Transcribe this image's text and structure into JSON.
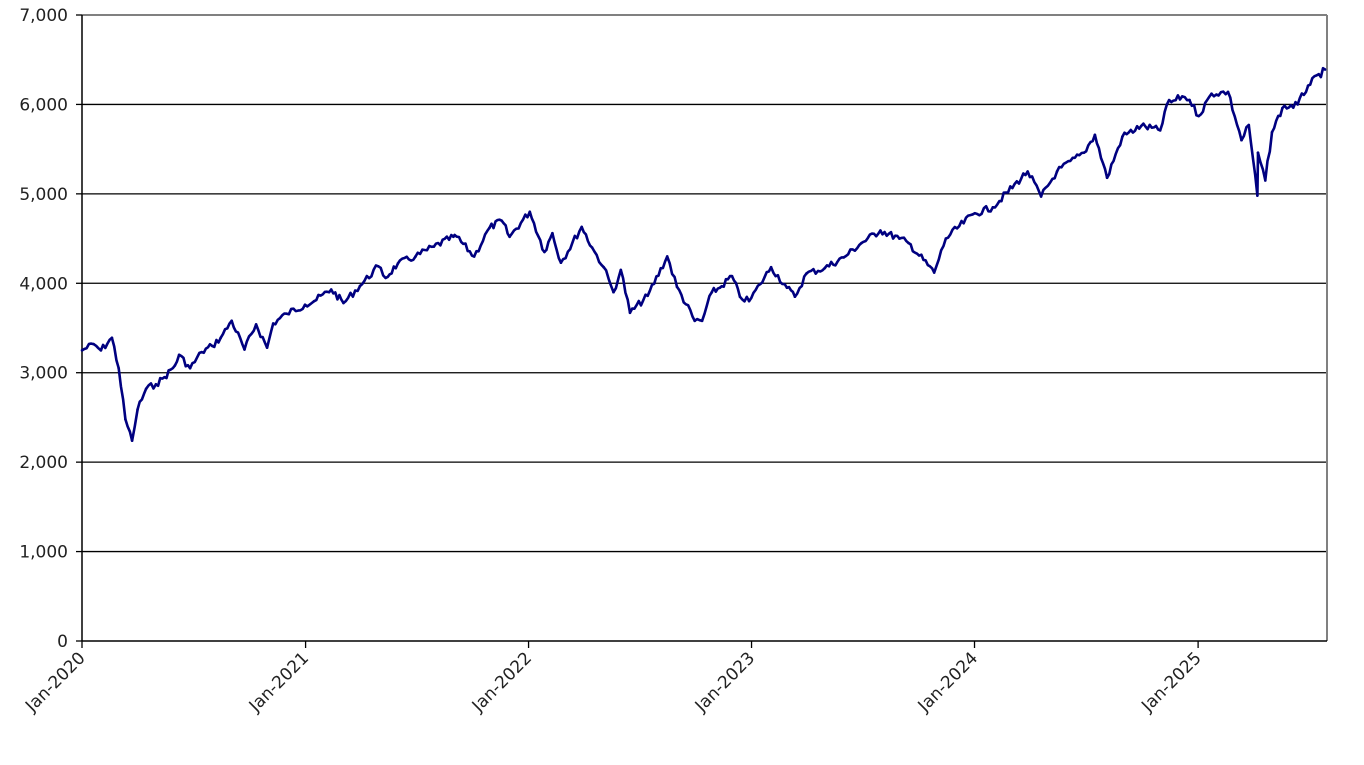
{
  "chart_data": {
    "type": "line",
    "title": "",
    "xlabel": "",
    "ylabel": "",
    "ylim": [
      0,
      7000
    ],
    "y_ticks": [
      0,
      1000,
      2000,
      3000,
      4000,
      5000,
      6000,
      7000
    ],
    "y_tick_labels": [
      "0",
      "1,000",
      "2,000",
      "3,000",
      "4,000",
      "5,000",
      "6,000",
      "7,000"
    ],
    "xlim": [
      "2020-01-01",
      "2025-07-31"
    ],
    "x_ticks": [
      "2020-01-01",
      "2021-01-01",
      "2022-01-01",
      "2023-01-01",
      "2024-01-01",
      "2025-01-01"
    ],
    "x_tick_labels": [
      "Jan-2020",
      "Jan-2021",
      "Jan-2022",
      "Jan-2023",
      "Jan-2024",
      "Jan-2025"
    ],
    "grid": "horizontal",
    "legend": "none",
    "colors": {
      "line": "#000080",
      "grid": "#000000",
      "axis": "#808080"
    },
    "series": [
      {
        "x": [
          "2020-01-01",
          "2020-01-20",
          "2020-02-01",
          "2020-02-19",
          "2020-03-01",
          "2020-03-12",
          "2020-03-23",
          "2020-04-01",
          "2020-04-15",
          "2020-05-01",
          "2020-05-15",
          "2020-06-01",
          "2020-06-08",
          "2020-06-26",
          "2020-07-15",
          "2020-08-01",
          "2020-08-15",
          "2020-09-02",
          "2020-09-23",
          "2020-10-12",
          "2020-10-30",
          "2020-11-09",
          "2020-12-01",
          "2020-12-31",
          "2021-01-15",
          "2021-02-12",
          "2021-03-04",
          "2021-03-31",
          "2021-04-30",
          "2021-05-12",
          "2021-06-01",
          "2021-06-30",
          "2021-07-30",
          "2021-08-31",
          "2021-09-02",
          "2021-10-04",
          "2021-10-29",
          "2021-11-18",
          "2021-12-01",
          "2022-01-03",
          "2022-01-27",
          "2022-02-09",
          "2022-02-23",
          "2022-03-29",
          "2022-04-15",
          "2022-05-04",
          "2022-05-20",
          "2022-06-01",
          "2022-06-16",
          "2022-07-15",
          "2022-08-16",
          "2022-09-01",
          "2022-09-30",
          "2022-10-12",
          "2022-10-28",
          "2022-11-10",
          "2022-11-30",
          "2022-12-13",
          "2022-12-28",
          "2023-01-15",
          "2023-02-02",
          "2023-02-28",
          "2023-03-13",
          "2023-04-01",
          "2023-05-01",
          "2023-06-01",
          "2023-06-30",
          "2023-07-31",
          "2023-08-31",
          "2023-09-15",
          "2023-10-27",
          "2023-11-15",
          "2023-12-29",
          "2024-01-31",
          "2024-03-28",
          "2024-04-19",
          "2024-05-15",
          "2024-06-28",
          "2024-07-16",
          "2024-08-05",
          "2024-08-30",
          "2024-09-30",
          "2024-10-31",
          "2024-11-11",
          "2024-12-06",
          "2024-12-18",
          "2025-01-02",
          "2025-01-23",
          "2025-02-19",
          "2025-03-13",
          "2025-03-25",
          "2025-04-08",
          "2025-04-09",
          "2025-04-21",
          "2025-05-02",
          "2025-05-19",
          "2025-06-13",
          "2025-06-30",
          "2025-07-28"
        ],
        "values": [
          3250,
          3320,
          3250,
          3390,
          3050,
          2480,
          2240,
          2590,
          2820,
          2870,
          2950,
          3080,
          3200,
          3050,
          3230,
          3300,
          3390,
          3580,
          3260,
          3540,
          3280,
          3550,
          3660,
          3760,
          3800,
          3930,
          3780,
          3970,
          4190,
          4060,
          4220,
          4300,
          4410,
          4520,
          4540,
          4300,
          4620,
          4700,
          4520,
          4800,
          4350,
          4560,
          4230,
          4630,
          4400,
          4180,
          3900,
          4150,
          3670,
          3860,
          4300,
          3960,
          3580,
          3580,
          3900,
          3950,
          4080,
          3850,
          3800,
          3990,
          4180,
          3950,
          3850,
          4110,
          4170,
          4290,
          4450,
          4590,
          4500,
          4450,
          4120,
          4500,
          4770,
          4850,
          5250,
          4970,
          5250,
          5460,
          5660,
          5180,
          5640,
          5760,
          5710,
          6000,
          6090,
          6050,
          5870,
          6120,
          6140,
          5600,
          5770,
          4980,
          5460,
          5150,
          5690,
          5960,
          6000,
          6210,
          6390
        ]
      }
    ]
  }
}
